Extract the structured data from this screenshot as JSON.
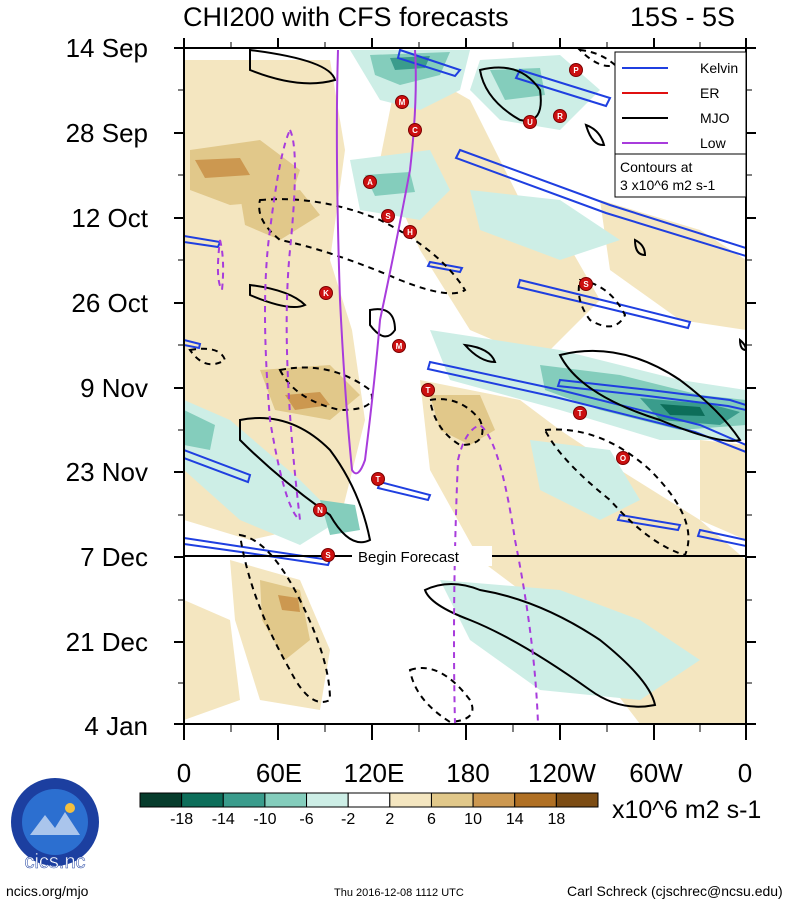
{
  "chart_data": {
    "type": "heatmap",
    "title": "CHI200 with CFS forecasts",
    "region_label": "15S - 5S",
    "y_tick_labels": [
      "14 Sep",
      "28 Sep",
      "12 Oct",
      "26 Oct",
      "9 Nov",
      "23 Nov",
      "7 Dec",
      "21 Dec",
      "4 Jan"
    ],
    "x_tick_labels": [
      "0",
      "60E",
      "120E",
      "180",
      "120W",
      "60W",
      "0"
    ],
    "xlim_deg_east": [
      0,
      360
    ],
    "legend": [
      "Kelvin",
      "ER",
      "MJO",
      "Low"
    ],
    "legend_placement": "top-right",
    "legend_colors": {
      "Kelvin": "#1f3fe0",
      "ER": "#e01010",
      "MJO": "#000000",
      "Low": "#a83cdc"
    },
    "contour_note": [
      "Contours at",
      "3 x10^6 m2 s-1"
    ],
    "begin_forecast_label": "Begin Forecast",
    "colorbar": {
      "tick_labels": [
        "-18",
        "-14",
        "-10",
        "-6",
        "-2",
        "2",
        "6",
        "10",
        "14",
        "18"
      ],
      "levels": [
        -18,
        -14,
        -10,
        -6,
        -2,
        2,
        6,
        10,
        14,
        18
      ],
      "colors": [
        "#063c2c",
        "#0d6e5a",
        "#3a9c8c",
        "#84cdbc",
        "#cdeee6",
        "#ffffff",
        "#f4e6c0",
        "#e1c88a",
        "#cc9850",
        "#b07024",
        "#7c4c14"
      ],
      "units": "x10^6 m2 s-1"
    },
    "storm_markers": [
      "P",
      "M",
      "U",
      "R",
      "C",
      "A",
      "S",
      "H",
      "K",
      "M",
      "S",
      "T",
      "T",
      "O",
      "T",
      "N",
      "S"
    ],
    "grid": false
  },
  "footer": {
    "left": "ncics.org/mjo",
    "center": "Thu 2016-12-08 1112 UTC",
    "right": "Carl Schreck (cjschrec@ncsu.edu)",
    "logo_text": "cics.nc",
    "logo_ring_text": "Cooperative Institute for Climate and Satellites"
  }
}
